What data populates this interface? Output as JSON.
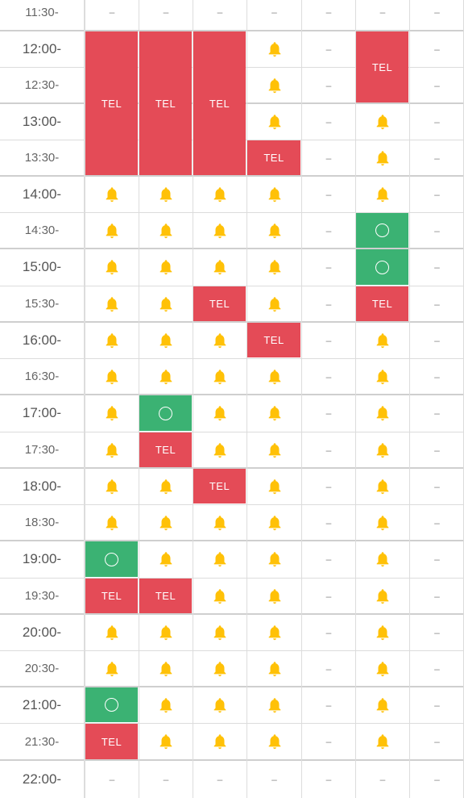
{
  "times": [
    "11:30-",
    "12:00-",
    "12:30-",
    "13:00-",
    "13:30-",
    "14:00-",
    "14:30-",
    "15:00-",
    "15:30-",
    "16:00-",
    "16:30-",
    "17:00-",
    "17:30-",
    "18:00-",
    "18:30-",
    "19:00-",
    "19:30-",
    "20:00-",
    "20:30-",
    "21:00-",
    "21:30-",
    "22:00-"
  ],
  "labels": {
    "tel": "TEL",
    "dash": "–"
  },
  "icons": {
    "notify": "bell-icon",
    "available": "circle-icon"
  },
  "colors": {
    "tel": "#e44b57",
    "available": "#3bb273",
    "bell": "#ffc107"
  },
  "columns": [
    [
      "dash",
      "TEL|4",
      "-",
      "-",
      "-",
      "bell",
      "bell",
      "bell",
      "bell",
      "bell",
      "bell",
      "bell",
      "bell",
      "bell",
      "bell",
      "ok",
      "TEL",
      "bell",
      "bell",
      "ok",
      "TEL",
      "dash"
    ],
    [
      "dash",
      "TEL|4",
      "-",
      "-",
      "-",
      "bell",
      "bell",
      "bell",
      "bell",
      "bell",
      "bell",
      "ok",
      "TEL",
      "bell",
      "bell",
      "bell",
      "TEL",
      "bell",
      "bell",
      "bell",
      "bell",
      "dash"
    ],
    [
      "dash",
      "TEL|4",
      "-",
      "-",
      "-",
      "bell",
      "bell",
      "bell",
      "TEL",
      "bell",
      "bell",
      "bell",
      "bell",
      "TEL",
      "bell",
      "bell",
      "bell",
      "bell",
      "bell",
      "bell",
      "bell",
      "dash"
    ],
    [
      "dash",
      "bell",
      "bell",
      "bell",
      "TEL",
      "bell",
      "bell",
      "bell",
      "bell",
      "TEL",
      "bell",
      "bell",
      "bell",
      "bell",
      "bell",
      "bell",
      "bell",
      "bell",
      "bell",
      "bell",
      "bell",
      "dash"
    ],
    [
      "dash",
      "dash",
      "dash",
      "dash",
      "dash",
      "dash",
      "dash",
      "dash",
      "dash",
      "dash",
      "dash",
      "dash",
      "dash",
      "dash",
      "dash",
      "dash",
      "dash",
      "dash",
      "dash",
      "dash",
      "dash",
      "dash"
    ],
    [
      "dash",
      "TEL|2",
      "-",
      "bell",
      "bell",
      "bell",
      "ok",
      "ok",
      "TEL",
      "bell",
      "bell",
      "bell",
      "bell",
      "bell",
      "bell",
      "bell",
      "bell",
      "bell",
      "bell",
      "bell",
      "bell",
      "dash"
    ],
    [
      "dash",
      "dash",
      "dash",
      "dash",
      "dash",
      "dash",
      "dash",
      "dash",
      "dash",
      "dash",
      "dash",
      "dash",
      "dash",
      "dash",
      "dash",
      "dash",
      "dash",
      "dash",
      "dash",
      "dash",
      "dash",
      "dash"
    ]
  ]
}
